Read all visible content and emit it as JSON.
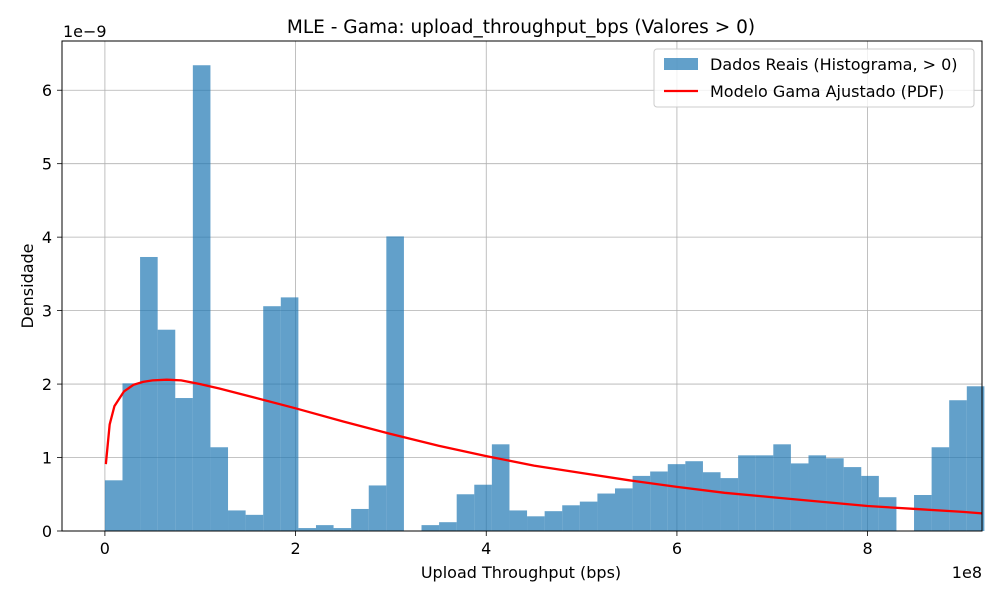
{
  "chart_data": {
    "type": "bar",
    "title": "MLE - Gama: upload_throughput_bps (Valores > 0)",
    "xlabel": "Upload Throughput (bps)",
    "ylabel": "Densidade",
    "x_offset_text": "1e8",
    "y_offset_text": "1e−9",
    "xlim": [
      -0.45,
      9.2
    ],
    "ylim": [
      0,
      6.67
    ],
    "xticks": [
      0,
      2,
      4,
      6,
      8
    ],
    "xtick_labels": [
      "0",
      "2",
      "4",
      "6",
      "8"
    ],
    "yticks": [
      0,
      1,
      2,
      3,
      4,
      5,
      6
    ],
    "ytick_labels": [
      "0",
      "1",
      "2",
      "3",
      "4",
      "5",
      "6"
    ],
    "grid": true,
    "legend_position": "top-right",
    "legend": [
      "Dados Reais (Histograma, > 0)",
      "Modelo Gama Ajustado (PDF)"
    ],
    "colors": {
      "bars": "#1f77b4",
      "bar_alpha": 0.7,
      "pdf": "#ff0000",
      "grid": "#b0b0b0"
    },
    "histogram": {
      "name": "Dados Reais (Histograma, > 0)",
      "bin_start": 0,
      "bin_width": 0.1845,
      "values": [
        0.69,
        2.01,
        3.73,
        2.74,
        1.81,
        6.34,
        1.14,
        0.28,
        0.22,
        3.06,
        3.18,
        0.04,
        0.08,
        0.04,
        0.3,
        0.62,
        4.01,
        0.0,
        0.08,
        0.12,
        0.5,
        0.63,
        1.18,
        0.28,
        0.2,
        0.27,
        0.35,
        0.4,
        0.51,
        0.58,
        0.75,
        0.81,
        0.91,
        0.95,
        0.8,
        0.72,
        1.03,
        1.03,
        1.18,
        0.92,
        1.03,
        0.99,
        0.87,
        0.75,
        0.46,
        0.0,
        0.49,
        1.14,
        1.78,
        1.97
      ]
    },
    "pdf": {
      "name": "Modelo Gama Ajustado (PDF)",
      "x": [
        0.01,
        0.05,
        0.1,
        0.2,
        0.3,
        0.4,
        0.5,
        0.65,
        0.8,
        1.0,
        1.2,
        1.5,
        2.0,
        2.5,
        3.0,
        3.5,
        4.0,
        4.5,
        5.0,
        5.5,
        6.0,
        6.5,
        7.0,
        7.5,
        8.0,
        8.5,
        9.0,
        9.2
      ],
      "y": [
        0.91,
        1.45,
        1.7,
        1.9,
        1.99,
        2.03,
        2.05,
        2.06,
        2.05,
        2.0,
        1.94,
        1.84,
        1.67,
        1.49,
        1.32,
        1.16,
        1.02,
        0.89,
        0.79,
        0.69,
        0.6,
        0.52,
        0.46,
        0.4,
        0.34,
        0.3,
        0.26,
        0.24
      ]
    }
  }
}
